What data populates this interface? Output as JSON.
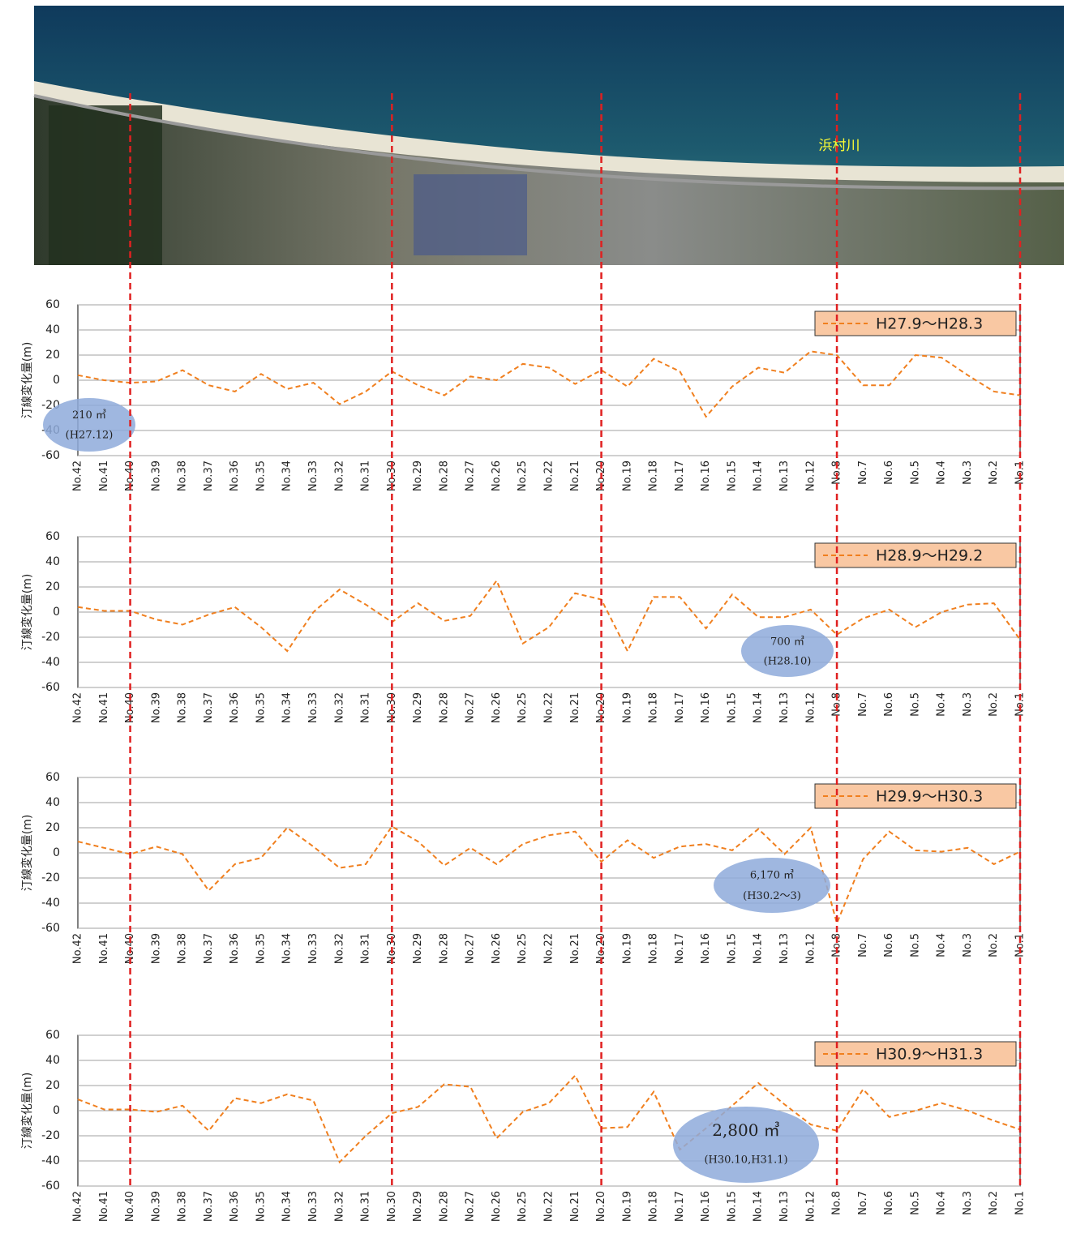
{
  "image_label": "浜村川",
  "chart_data": [
    {
      "type": "line",
      "ylabel": "汀線変化量(m)",
      "categories": [
        "No.42",
        "No.41",
        "No.40",
        "No.39",
        "No.38",
        "No.37",
        "No.36",
        "No.35",
        "No.34",
        "No.33",
        "No.32",
        "No.31",
        "No.30",
        "No.29",
        "No.28",
        "No.27",
        "No.26",
        "No.25",
        "No.22",
        "No.21",
        "No.20",
        "No.19",
        "No.18",
        "No.17",
        "No.16",
        "No.15",
        "No.14",
        "No.13",
        "No.12",
        "No.8",
        "No.7",
        "No.6",
        "No.5",
        "No.4",
        "No.3",
        "No.2",
        "No.1"
      ],
      "series": [
        {
          "name": "H27.9～H28.3",
          "color": "#f07f1e",
          "values": [
            4,
            0,
            -2,
            -1,
            8,
            -4,
            -9,
            5,
            -7,
            -2,
            -19,
            -9,
            7,
            -4,
            -12,
            3,
            0,
            13,
            10,
            -3,
            8,
            -5,
            17,
            7,
            -29,
            -5,
            10,
            6,
            23,
            20,
            -4,
            -4,
            20,
            18,
            4,
            -9,
            -12
          ]
        }
      ],
      "ylim": [
        -60,
        60
      ],
      "yticks": [
        -60,
        -40,
        -20,
        0,
        20,
        40,
        60
      ],
      "grid": true,
      "annotation": [
        "210 ㎥",
        "(H27.12)"
      ]
    },
    {
      "type": "line",
      "ylabel": "汀線変化量(m)",
      "categories": [
        "No.42",
        "No.41",
        "No.40",
        "No.39",
        "No.38",
        "No.37",
        "No.36",
        "No.35",
        "No.34",
        "No.33",
        "No.32",
        "No.31",
        "No.30",
        "No.29",
        "No.28",
        "No.27",
        "No.26",
        "No.25",
        "No.22",
        "No.21",
        "No.20",
        "No.19",
        "No.18",
        "No.17",
        "No.16",
        "No.15",
        "No.14",
        "No.13",
        "No.12",
        "No.8",
        "No.7",
        "No.6",
        "No.5",
        "No.4",
        "No.3",
        "No.2",
        "No.1"
      ],
      "series": [
        {
          "name": "H28.9～H29.2",
          "color": "#f07f1e",
          "values": [
            4,
            1,
            1,
            -6,
            -10,
            -2,
            4,
            -12,
            -31,
            0,
            18,
            6,
            -8,
            7,
            -7,
            -3,
            25,
            -25,
            -12,
            15,
            10,
            -31,
            12,
            12,
            -13,
            14,
            -4,
            -4,
            2,
            -18,
            -5,
            2,
            -12,
            0,
            6,
            7,
            -22
          ]
        }
      ],
      "ylim": [
        -60,
        60
      ],
      "yticks": [
        -60,
        -40,
        -20,
        0,
        20,
        40,
        60
      ],
      "grid": true,
      "annotation": [
        "700 ㎥",
        "(H28.10)"
      ]
    },
    {
      "type": "line",
      "ylabel": "汀線変化量(m)",
      "categories": [
        "No.42",
        "No.41",
        "No.40",
        "No.39",
        "No.38",
        "No.37",
        "No.36",
        "No.35",
        "No.34",
        "No.33",
        "No.32",
        "No.31",
        "No.30",
        "No.29",
        "No.28",
        "No.27",
        "No.26",
        "No.25",
        "No.22",
        "No.21",
        "No.20",
        "No.19",
        "No.18",
        "No.17",
        "No.16",
        "No.15",
        "No.14",
        "No.13",
        "No.12",
        "No.8",
        "No.7",
        "No.6",
        "No.5",
        "No.4",
        "No.3",
        "No.2",
        "No.1"
      ],
      "series": [
        {
          "name": "H29.9～H30.3",
          "color": "#f07f1e",
          "values": [
            9,
            4,
            -1,
            5,
            -1,
            -30,
            -9,
            -4,
            20,
            5,
            -12,
            -9,
            21,
            9,
            -10,
            4,
            -9,
            7,
            14,
            17,
            -7,
            10,
            -4,
            5,
            7,
            2,
            19,
            -1,
            20,
            -56,
            -5,
            17,
            2,
            1,
            4,
            -9,
            1
          ]
        }
      ],
      "ylim": [
        -60,
        60
      ],
      "yticks": [
        -60,
        -40,
        -20,
        0,
        20,
        40,
        60
      ],
      "grid": true,
      "annotation": [
        "6,170 ㎥",
        "(H30.2～3)"
      ]
    },
    {
      "type": "line",
      "ylabel": "汀線変化量(m)",
      "categories": [
        "No.42",
        "No.41",
        "No.40",
        "No.39",
        "No.38",
        "No.37",
        "No.36",
        "No.35",
        "No.34",
        "No.33",
        "No.32",
        "No.31",
        "No.30",
        "No.29",
        "No.28",
        "No.27",
        "No.26",
        "No.25",
        "No.22",
        "No.21",
        "No.20",
        "No.19",
        "No.18",
        "No.17",
        "No.16",
        "No.15",
        "No.14",
        "No.13",
        "No.12",
        "No.8",
        "No.7",
        "No.6",
        "No.5",
        "No.4",
        "No.3",
        "No.2",
        "No.1"
      ],
      "series": [
        {
          "name": "H30.9～H31.3",
          "color": "#f07f1e",
          "values": [
            9,
            1,
            1,
            -1,
            4,
            -16,
            10,
            6,
            13,
            8,
            -41,
            -20,
            -2,
            3,
            21,
            19,
            -22,
            -1,
            6,
            28,
            -14,
            -13,
            15,
            -31,
            -14,
            4,
            22,
            5,
            -11,
            -16,
            17,
            -5,
            0,
            6,
            0,
            -8,
            -15
          ]
        }
      ],
      "ylim": [
        -60,
        60
      ],
      "yticks": [
        -60,
        -40,
        -20,
        0,
        20,
        40,
        60
      ],
      "grid": true,
      "annotation": [
        "2,800 ㎥",
        "(H30.10,H31.1)"
      ]
    }
  ]
}
